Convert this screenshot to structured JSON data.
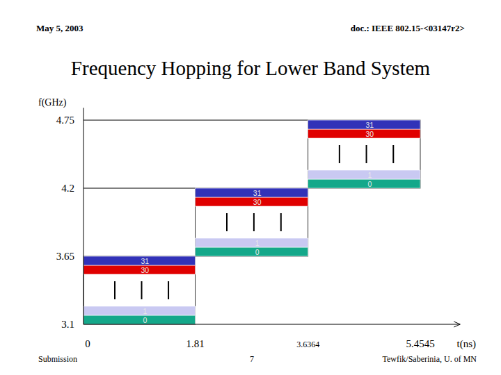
{
  "header": {
    "date": "May 5, 2003",
    "doc": "doc.: IEEE 802.15-<03147r2>"
  },
  "chart_data": {
    "type": "frequency_hopping",
    "title": "Frequency Hopping for Lower Band System",
    "y_label": "f(GHz)",
    "x_label": "t(ns)",
    "xlim": [
      0,
      6.1
    ],
    "xticks": [
      0,
      1.81,
      3.6364,
      5.4545
    ],
    "ylim": [
      3.1,
      4.85
    ],
    "yticks": [
      3.1,
      3.65,
      4.2,
      4.75
    ],
    "hops": [
      {
        "t_start": 0,
        "t_end": 1.81,
        "f_low": 3.1,
        "f_high": 3.65
      },
      {
        "t_start": 1.81,
        "t_end": 3.6364,
        "f_low": 3.65,
        "f_high": 4.2
      },
      {
        "t_start": 3.6364,
        "t_end": 5.4545,
        "f_low": 4.2,
        "f_high": 4.75
      }
    ],
    "series": [
      {
        "name": "0",
        "color": "#14a88a"
      },
      {
        "name": "1",
        "color": "#c9c9f2"
      },
      {
        "name": "30",
        "color": "#e00000"
      },
      {
        "name": "31",
        "color": "#3232b8"
      }
    ]
  },
  "footer": {
    "left": "Submission",
    "page": 7,
    "right": "Tewfik/Saberinia, U. of MN"
  }
}
